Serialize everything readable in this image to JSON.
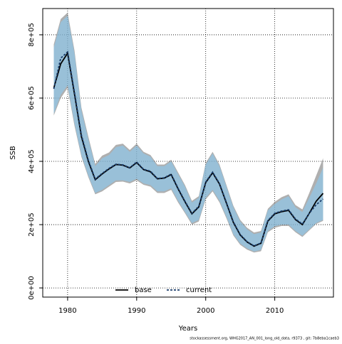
{
  "chart_data": {
    "type": "line",
    "xlabel": "Years",
    "ylabel": "SSB",
    "footnote": "stockassessment.org, WHG2017_AN_001_long_old_data, r9373 , git: 7b8eba1caeb3",
    "x": [
      1978,
      1979,
      1980,
      1981,
      1982,
      1983,
      1984,
      1985,
      1986,
      1987,
      1988,
      1989,
      1990,
      1991,
      1992,
      1993,
      1994,
      1995,
      1996,
      1997,
      1998,
      1999,
      2000,
      2001,
      2002,
      2003,
      2004,
      2005,
      2006,
      2007,
      2008,
      2009,
      2010,
      2011,
      2012,
      2013,
      2014,
      2015,
      2016,
      2017
    ],
    "series": [
      {
        "name": "base",
        "color": "#000000",
        "band_color": "rgba(110,110,110,0.55)",
        "dash": false,
        "values": [
          632000,
          708000,
          742000,
          612000,
          478000,
          400000,
          342000,
          360000,
          376000,
          390000,
          388000,
          379000,
          396000,
          374000,
          367000,
          345000,
          347000,
          358000,
          313000,
          272000,
          234000,
          256000,
          333000,
          364000,
          328000,
          268000,
          207000,
          167000,
          145000,
          132000,
          141000,
          211000,
          234000,
          241000,
          245000,
          216000,
          200000,
          236000,
          274000,
          299000
        ],
        "upper": [
          770000,
          850000,
          870000,
          750000,
          570000,
          478000,
          392000,
          418000,
          428000,
          452000,
          456000,
          436000,
          456000,
          430000,
          420000,
          390000,
          390000,
          405000,
          365000,
          325000,
          275000,
          290000,
          395000,
          430000,
          390000,
          325000,
          260000,
          215000,
          190000,
          175000,
          180000,
          250000,
          272000,
          287000,
          296000,
          262000,
          248000,
          300000,
          355000,
          410000
        ],
        "lower": [
          545000,
          600000,
          632000,
          512000,
          414000,
          350000,
          296000,
          305000,
          320000,
          335000,
          336000,
          330000,
          340000,
          326000,
          320000,
          300000,
          300000,
          310000,
          270000,
          236000,
          200000,
          210000,
          280000,
          305000,
          270000,
          220000,
          166000,
          136000,
          121000,
          112000,
          116000,
          176000,
          190000,
          196000,
          196000,
          176000,
          161000,
          182000,
          202000,
          212000
        ]
      },
      {
        "name": "current",
        "color": "#1a3d6b",
        "band_color": "rgba(135,206,250,0.55)",
        "dash": true,
        "values": [
          629000,
          726000,
          746000,
          618000,
          483000,
          404000,
          344000,
          362000,
          378000,
          391000,
          389000,
          380000,
          398000,
          375000,
          369000,
          346000,
          348000,
          360000,
          315000,
          274000,
          236000,
          258000,
          335000,
          366000,
          330000,
          270000,
          209000,
          169000,
          146000,
          133000,
          142000,
          213000,
          236000,
          243000,
          247000,
          218000,
          202000,
          236000,
          263000,
          281000
        ],
        "upper": [
          760000,
          840000,
          860000,
          740000,
          560000,
          470000,
          385000,
          410000,
          420000,
          445000,
          450000,
          430000,
          450000,
          425000,
          415000,
          385000,
          385000,
          400000,
          360000,
          320000,
          270000,
          285000,
          390000,
          425000,
          385000,
          320000,
          255000,
          210000,
          185000,
          170000,
          175000,
          245000,
          265000,
          280000,
          290000,
          255000,
          240000,
          285000,
          330000,
          380000
        ],
        "lower": [
          550000,
          610000,
          640000,
          520000,
          420000,
          355000,
          300000,
          310000,
          325000,
          340000,
          340000,
          335000,
          345000,
          330000,
          325000,
          305000,
          305000,
          315000,
          275000,
          240000,
          205000,
          215000,
          285000,
          310000,
          275000,
          225000,
          170000,
          140000,
          125000,
          115000,
          120000,
          180000,
          195000,
          200000,
          200000,
          180000,
          165000,
          185000,
          205000,
          215000
        ]
      }
    ],
    "xlim": [
      1976.4,
      2018.5
    ],
    "ylim": [
      -29000,
      883000
    ],
    "xticks": [
      1980,
      1990,
      2000,
      2010
    ],
    "yticks": [
      {
        "value": 0,
        "label": "0e+00"
      },
      {
        "value": 200000,
        "label": "2e+05"
      },
      {
        "value": 400000,
        "label": "4e+05"
      },
      {
        "value": 600000,
        "label": "6e+05"
      },
      {
        "value": 800000,
        "label": "8e+05"
      }
    ],
    "grid": true,
    "legend": "bottom"
  }
}
